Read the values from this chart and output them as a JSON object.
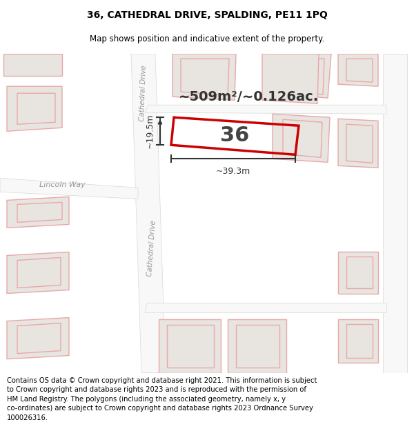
{
  "title": "36, CATHEDRAL DRIVE, SPALDING, PE11 1PQ",
  "subtitle": "Map shows position and indicative extent of the property.",
  "area_text": "~509m²/~0.126ac.",
  "width_label": "~39.3m",
  "height_label": "~19.5m",
  "number_label": "36",
  "footer_text": "Contains OS data © Crown copyright and database right 2021. This information is subject\nto Crown copyright and database rights 2023 and is reproduced with the permission of\nHM Land Registry. The polygons (including the associated geometry, namely x, y\nco-ordinates) are subject to Crown copyright and database rights 2023 Ordnance Survey\n100026316.",
  "map_bg": "#f2f0ee",
  "road_color": "#ffffff",
  "road_edge": "#d0ccc8",
  "property_edge": "#cc0000",
  "bldg_fill": "#e8e4e0",
  "bldg_edge": "#e8a8a8",
  "title_fontsize": 10,
  "subtitle_fontsize": 8.5,
  "footer_fontsize": 7.2
}
